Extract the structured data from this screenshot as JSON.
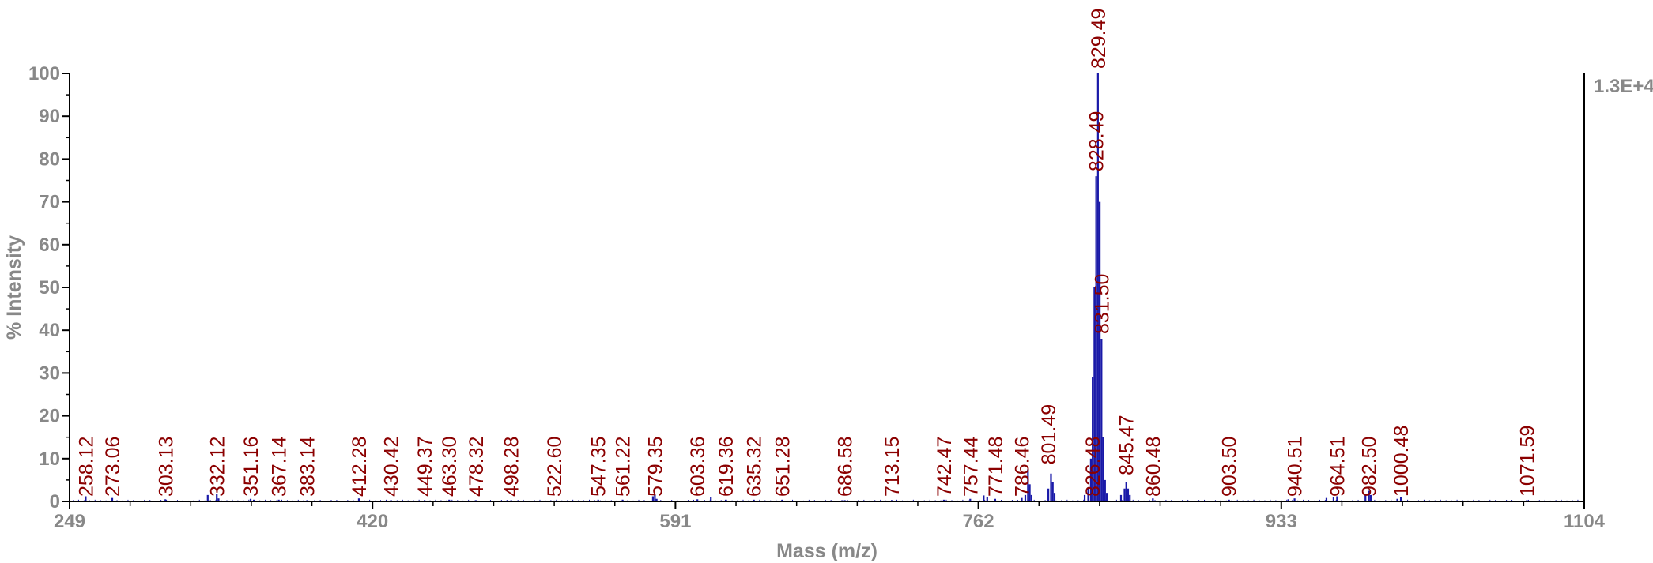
{
  "chart_data": {
    "type": "bar",
    "xlabel": "Mass (m/z)",
    "ylabel": "% Intensity",
    "xlim": [
      249,
      1104
    ],
    "ylim": [
      0,
      100
    ],
    "x_ticks": [
      "249",
      "420",
      "591",
      "762",
      "933",
      "1104"
    ],
    "y_ticks": [
      "0",
      "10",
      "20",
      "30",
      "40",
      "50",
      "60",
      "70",
      "80",
      "90",
      "100"
    ],
    "max_intensity_label": "1.3E+4",
    "bar_color": "#1a1aa8",
    "label_color": "#8b0000",
    "axis_color": "#888888",
    "peak_labels": [
      {
        "mz": 258.12,
        "text": "258.12"
      },
      {
        "mz": 273.06,
        "text": "273.06"
      },
      {
        "mz": 303.13,
        "text": "303.13"
      },
      {
        "mz": 332.12,
        "text": "332.12"
      },
      {
        "mz": 351.16,
        "text": "351.16"
      },
      {
        "mz": 367.14,
        "text": "367.14"
      },
      {
        "mz": 383.14,
        "text": "383.14"
      },
      {
        "mz": 412.28,
        "text": "412.28"
      },
      {
        "mz": 430.42,
        "text": "430.42"
      },
      {
        "mz": 449.37,
        "text": "449.37"
      },
      {
        "mz": 463.3,
        "text": "463.30"
      },
      {
        "mz": 478.32,
        "text": "478.32"
      },
      {
        "mz": 498.28,
        "text": "498.28"
      },
      {
        "mz": 522.6,
        "text": "522.60"
      },
      {
        "mz": 547.35,
        "text": "547.35"
      },
      {
        "mz": 561.22,
        "text": "561.22"
      },
      {
        "mz": 579.35,
        "text": "579.35"
      },
      {
        "mz": 603.36,
        "text": "603.36"
      },
      {
        "mz": 619.36,
        "text": "619.36"
      },
      {
        "mz": 635.32,
        "text": "635.32"
      },
      {
        "mz": 651.28,
        "text": "651.28"
      },
      {
        "mz": 686.58,
        "text": "686.58"
      },
      {
        "mz": 713.15,
        "text": "713.15"
      },
      {
        "mz": 742.47,
        "text": "742.47"
      },
      {
        "mz": 757.44,
        "text": "757.44"
      },
      {
        "mz": 771.48,
        "text": "771.48"
      },
      {
        "mz": 786.46,
        "text": "786.46"
      },
      {
        "mz": 801.49,
        "text": "801.49"
      },
      {
        "mz": 826.48,
        "text": "826.48"
      },
      {
        "mz": 828.49,
        "text": "828.49"
      },
      {
        "mz": 829.49,
        "text": "829.49"
      },
      {
        "mz": 831.5,
        "text": "831.50"
      },
      {
        "mz": 845.47,
        "text": "845.47"
      },
      {
        "mz": 860.48,
        "text": "860.48"
      },
      {
        "mz": 903.5,
        "text": "903.50"
      },
      {
        "mz": 940.51,
        "text": "940.51"
      },
      {
        "mz": 964.51,
        "text": "964.51"
      },
      {
        "mz": 982.5,
        "text": "982.50"
      },
      {
        "mz": 1000.48,
        "text": "1000.48"
      },
      {
        "mz": 1071.59,
        "text": "1071.59"
      }
    ],
    "peaks": [
      {
        "mz": 258.1,
        "intensity": 1.2
      },
      {
        "mz": 273.1,
        "intensity": 0.8
      },
      {
        "mz": 303.1,
        "intensity": 0.5
      },
      {
        "mz": 327.0,
        "intensity": 1.5
      },
      {
        "mz": 332.1,
        "intensity": 1.8
      },
      {
        "mz": 333.1,
        "intensity": 0.7
      },
      {
        "mz": 351.2,
        "intensity": 0.6
      },
      {
        "mz": 353.0,
        "intensity": 0.4
      },
      {
        "mz": 367.1,
        "intensity": 0.4
      },
      {
        "mz": 383.1,
        "intensity": 0.3
      },
      {
        "mz": 412.3,
        "intensity": 0.7
      },
      {
        "mz": 430.4,
        "intensity": 0.3
      },
      {
        "mz": 449.4,
        "intensity": 0.3
      },
      {
        "mz": 463.3,
        "intensity": 0.4
      },
      {
        "mz": 478.3,
        "intensity": 0.3
      },
      {
        "mz": 498.3,
        "intensity": 0.3
      },
      {
        "mz": 522.6,
        "intensity": 0.2
      },
      {
        "mz": 547.4,
        "intensity": 0.4
      },
      {
        "mz": 561.2,
        "intensity": 0.4
      },
      {
        "mz": 578.3,
        "intensity": 1.2
      },
      {
        "mz": 579.4,
        "intensity": 1.6
      },
      {
        "mz": 580.4,
        "intensity": 0.6
      },
      {
        "mz": 603.4,
        "intensity": 0.5
      },
      {
        "mz": 611.0,
        "intensity": 1.0
      },
      {
        "mz": 619.4,
        "intensity": 0.4
      },
      {
        "mz": 635.3,
        "intensity": 0.4
      },
      {
        "mz": 651.3,
        "intensity": 0.4
      },
      {
        "mz": 686.6,
        "intensity": 0.3
      },
      {
        "mz": 713.2,
        "intensity": 0.3
      },
      {
        "mz": 742.5,
        "intensity": 0.4
      },
      {
        "mz": 757.4,
        "intensity": 0.6
      },
      {
        "mz": 765.0,
        "intensity": 1.4
      },
      {
        "mz": 767.0,
        "intensity": 1.0
      },
      {
        "mz": 771.5,
        "intensity": 0.6
      },
      {
        "mz": 786.5,
        "intensity": 0.8
      },
      {
        "mz": 788.5,
        "intensity": 1.5
      },
      {
        "mz": 790.0,
        "intensity": 7.5
      },
      {
        "mz": 791.0,
        "intensity": 4.0
      },
      {
        "mz": 792.0,
        "intensity": 1.5
      },
      {
        "mz": 801.5,
        "intensity": 3.0
      },
      {
        "mz": 803.0,
        "intensity": 6.5
      },
      {
        "mz": 804.0,
        "intensity": 4.5
      },
      {
        "mz": 805.0,
        "intensity": 2.0
      },
      {
        "mz": 822.0,
        "intensity": 1.5
      },
      {
        "mz": 824.0,
        "intensity": 3.0
      },
      {
        "mz": 825.5,
        "intensity": 10.0
      },
      {
        "mz": 826.5,
        "intensity": 29.0
      },
      {
        "mz": 827.5,
        "intensity": 50.0
      },
      {
        "mz": 828.5,
        "intensity": 76.0
      },
      {
        "mz": 829.5,
        "intensity": 100.0
      },
      {
        "mz": 830.5,
        "intensity": 70.0
      },
      {
        "mz": 831.5,
        "intensity": 38.0
      },
      {
        "mz": 832.5,
        "intensity": 15.0
      },
      {
        "mz": 833.5,
        "intensity": 5.0
      },
      {
        "mz": 834.5,
        "intensity": 2.0
      },
      {
        "mz": 842.5,
        "intensity": 1.5
      },
      {
        "mz": 844.5,
        "intensity": 3.0
      },
      {
        "mz": 845.5,
        "intensity": 4.5
      },
      {
        "mz": 846.5,
        "intensity": 3.0
      },
      {
        "mz": 847.5,
        "intensity": 1.5
      },
      {
        "mz": 860.5,
        "intensity": 0.7
      },
      {
        "mz": 903.5,
        "intensity": 0.4
      },
      {
        "mz": 937.0,
        "intensity": 0.5
      },
      {
        "mz": 940.5,
        "intensity": 0.7
      },
      {
        "mz": 958.5,
        "intensity": 0.8
      },
      {
        "mz": 962.5,
        "intensity": 1.0
      },
      {
        "mz": 964.5,
        "intensity": 1.2
      },
      {
        "mz": 980.5,
        "intensity": 1.5
      },
      {
        "mz": 982.5,
        "intensity": 2.5
      },
      {
        "mz": 983.5,
        "intensity": 1.5
      },
      {
        "mz": 998.5,
        "intensity": 0.6
      },
      {
        "mz": 1000.5,
        "intensity": 1.0
      },
      {
        "mz": 1071.6,
        "intensity": 0.3
      }
    ]
  }
}
